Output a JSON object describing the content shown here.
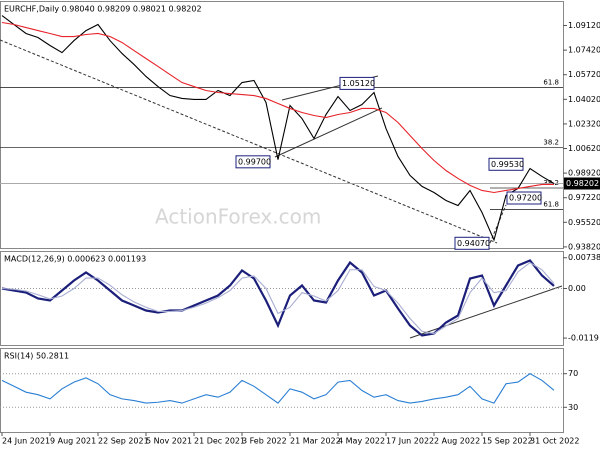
{
  "chart_data": [
    {
      "type": "line",
      "title": "EURCHF,Daily 0.98040 0.98209 0.98021 0.98202",
      "watermark": "ActionForex.com",
      "categories": [
        "24 Jun 2021",
        null,
        null,
        null,
        "9 Aug 2021",
        null,
        null,
        null,
        "22 Sep 2021",
        null,
        null,
        null,
        "5 Nov 2021",
        null,
        null,
        null,
        "21 Dec 2021",
        null,
        null,
        null,
        "3 Feb 2022",
        null,
        null,
        null,
        "21 Mar 2022",
        null,
        null,
        null,
        "4 May 2022",
        null,
        null,
        null,
        "17 Jun 2022",
        null,
        null,
        null,
        "2 Aug 2022",
        null,
        null,
        null,
        "15 Sep 2022",
        null,
        null,
        null,
        "31 Oct 2022",
        null,
        null
      ],
      "series": [
        {
          "color": "#000000",
          "values": [
            1.0981,
            1.0919,
            1.0857,
            1.0829,
            1.0774,
            1.0725,
            1.0808,
            1.0877,
            1.0919,
            1.0808,
            1.0719,
            1.0643,
            1.056,
            1.049,
            1.0428,
            1.0408,
            1.0401,
            1.0401,
            1.0463,
            1.0428,
            1.0518,
            1.0532,
            1.038,
            0.9985,
            1.0359,
            1.0269,
            1.0131,
            1.0297,
            1.0421,
            1.0325,
            1.0366,
            1.0449,
            1.02,
            1.0007,
            0.9876,
            0.98,
            0.9758,
            0.9703,
            0.9668,
            0.9772,
            0.962,
            0.943,
            0.9738,
            0.9786,
            0.9924,
            0.9869,
            0.982
          ]
        },
        {
          "color": "#e8232a",
          "values": [
            1.0933,
            1.0919,
            1.0898,
            1.0877,
            1.0857,
            1.0836,
            1.0836,
            1.085,
            1.0857,
            1.0836,
            1.0795,
            1.0739,
            1.0684,
            1.0629,
            1.0573,
            1.0518,
            1.049,
            1.0463,
            1.0449,
            1.0442,
            1.0435,
            1.0428,
            1.0408,
            1.0373,
            1.0339,
            1.0311,
            1.029,
            1.0276,
            1.0297,
            1.0311,
            1.0339,
            1.0339,
            1.0311,
            1.0242,
            1.0152,
            1.0062,
            0.9979,
            0.991,
            0.9855,
            0.9807,
            0.9772,
            0.9758,
            0.9772,
            0.9786,
            0.98,
            0.9814,
            0.9814
          ]
        }
      ],
      "ylim": [
        0.9371,
        1.1078
      ],
      "yticks": [
        {
          "value": 1.0912,
          "label": "1.09120"
        },
        {
          "value": 1.0742,
          "label": "1.07420"
        },
        {
          "value": 1.0572,
          "label": "1.05720"
        },
        {
          "value": 1.0402,
          "label": "1.04020"
        },
        {
          "value": 1.0232,
          "label": "1.02320"
        },
        {
          "value": 1.0062,
          "label": "1.00620"
        },
        {
          "value": 0.9892,
          "label": "0.98920"
        },
        {
          "value": 0.9722,
          "label": "0.97220"
        },
        {
          "value": 0.9552,
          "label": "0.95520"
        },
        {
          "value": 0.9382,
          "label": "0.93820"
        }
      ],
      "last_price": 0.98202,
      "levels": [
        {
          "label": "61.8",
          "value": 1.0484
        },
        {
          "label": "38.2",
          "value": 1.0069
        },
        {
          "label": "38.2",
          "value": 0.9789
        },
        {
          "label": "61.8",
          "value": 0.9641
        }
      ],
      "annotations": [
        {
          "label": "1.05120",
          "value": 1.0512
        },
        {
          "label": "0.99700",
          "value": 0.997
        },
        {
          "label": "0.99530",
          "value": 0.9953
        },
        {
          "label": "0.97200",
          "value": 0.972
        },
        {
          "label": "0.94070",
          "value": 0.9407
        }
      ]
    },
    {
      "type": "line",
      "title": "MACD(12,26,9) 0.000623 0.001193",
      "series": [
        {
          "color": "#1b1f7a",
          "values": [
            0,
            -0.00048,
            -0.00096,
            -0.0024,
            -0.00288,
            -0.00048,
            0.00192,
            0.00384,
            0.00192,
            -0.00048,
            -0.00288,
            -0.00408,
            -0.00528,
            -0.00576,
            -0.00528,
            -0.00528,
            -0.00408,
            -0.00288,
            -0.00168,
            0.00072,
            0.00432,
            0.0024,
            -0.00288,
            -0.00888,
            -0.00168,
            0.00072,
            -0.00288,
            -0.00336,
            0.00192,
            0.00624,
            0.00384,
            -0.00168,
            -0.00048,
            -0.0048,
            -0.00888,
            -0.01128,
            -0.0108,
            -0.00816,
            -0.00648,
            0.0024,
            0.00312,
            -0.00408,
            0.00072,
            0.00552,
            0.00672,
            0.00312,
            0.000623
          ]
        },
        {
          "color": "#a9aed2",
          "values": [
            0,
            -0.0002,
            -0.0006,
            -0.0015,
            -0.0025,
            -0.0018,
            0.0,
            0.0025,
            0.0025,
            0.0008,
            -0.0015,
            -0.0032,
            -0.0045,
            -0.0055,
            -0.0055,
            -0.0053,
            -0.0045,
            -0.0035,
            -0.0022,
            -0.0005,
            0.0025,
            0.003,
            0.0,
            -0.006,
            -0.0045,
            -0.001,
            -0.0018,
            -0.003,
            -0.0005,
            0.0045,
            0.0045,
            0.0005,
            -0.0005,
            -0.0035,
            -0.0072,
            -0.0103,
            -0.0108,
            -0.009,
            -0.0072,
            -0.001,
            0.0025,
            -0.001,
            -0.0005,
            0.004,
            0.0062,
            0.0045,
            0.001193
          ]
        }
      ],
      "ylim": [
        -0.01368,
        0.00888
      ],
      "yticks": [
        {
          "value": 0.007384,
          "label": "0.007384"
        },
        {
          "value": 0,
          "label": "0.00"
        },
        {
          "value": -0.0119,
          "label": "-0.0119"
        }
      ]
    },
    {
      "type": "line",
      "title": "RSI(14) 50.2811",
      "series": [
        {
          "color": "#2a7fd4",
          "values": [
            62,
            55,
            48,
            45,
            40,
            52,
            60,
            65,
            58,
            45,
            40,
            38,
            35,
            36,
            38,
            35,
            40,
            45,
            42,
            48,
            62,
            55,
            45,
            35,
            52,
            48,
            40,
            45,
            60,
            62,
            50,
            42,
            45,
            38,
            35,
            37,
            40,
            42,
            45,
            55,
            40,
            35,
            58,
            60,
            70,
            62,
            50.2811
          ]
        }
      ],
      "ylim": [
        0,
        100
      ],
      "yticks": [
        70,
        30
      ]
    }
  ]
}
